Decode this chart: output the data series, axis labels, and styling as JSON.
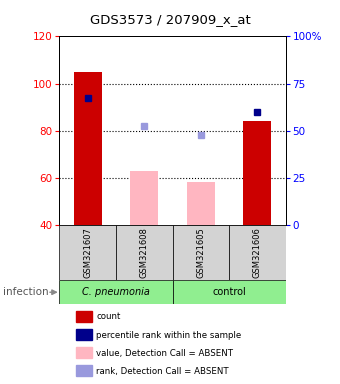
{
  "title": "GDS3573 / 207909_x_at",
  "samples": [
    "GSM321607",
    "GSM321608",
    "GSM321605",
    "GSM321606"
  ],
  "ylim": [
    40,
    120
  ],
  "y2lim": [
    0,
    100
  ],
  "yticks": [
    40,
    60,
    80,
    100,
    120
  ],
  "y2ticks": [
    0,
    25,
    50,
    75,
    100
  ],
  "y2ticklabels": [
    "0",
    "25",
    "50",
    "75",
    "100%"
  ],
  "bar_values": [
    105,
    null,
    null,
    84
  ],
  "bar_color": "#cc0000",
  "absent_bar_values": [
    null,
    63,
    58,
    null
  ],
  "absent_bar_color": "#ffb6c1",
  "percentile_present_left": [
    94,
    null,
    null,
    88
  ],
  "percentile_present_color": "#00008b",
  "percentile_absent_left": [
    null,
    82,
    78,
    null
  ],
  "percentile_absent_color": "#9999dd",
  "bar_bottom": 40,
  "bar_width": 0.5,
  "group_label": "infection",
  "cpneumonia_label": "C. pneumonia",
  "control_label": "control",
  "sample_box_color": "#d3d3d3",
  "group_green": "#90ee90",
  "legend_items": [
    {
      "label": "count",
      "color": "#cc0000"
    },
    {
      "label": "percentile rank within the sample",
      "color": "#00008b"
    },
    {
      "label": "value, Detection Call = ABSENT",
      "color": "#ffb6c1"
    },
    {
      "label": "rank, Detection Call = ABSENT",
      "color": "#9999dd"
    }
  ]
}
